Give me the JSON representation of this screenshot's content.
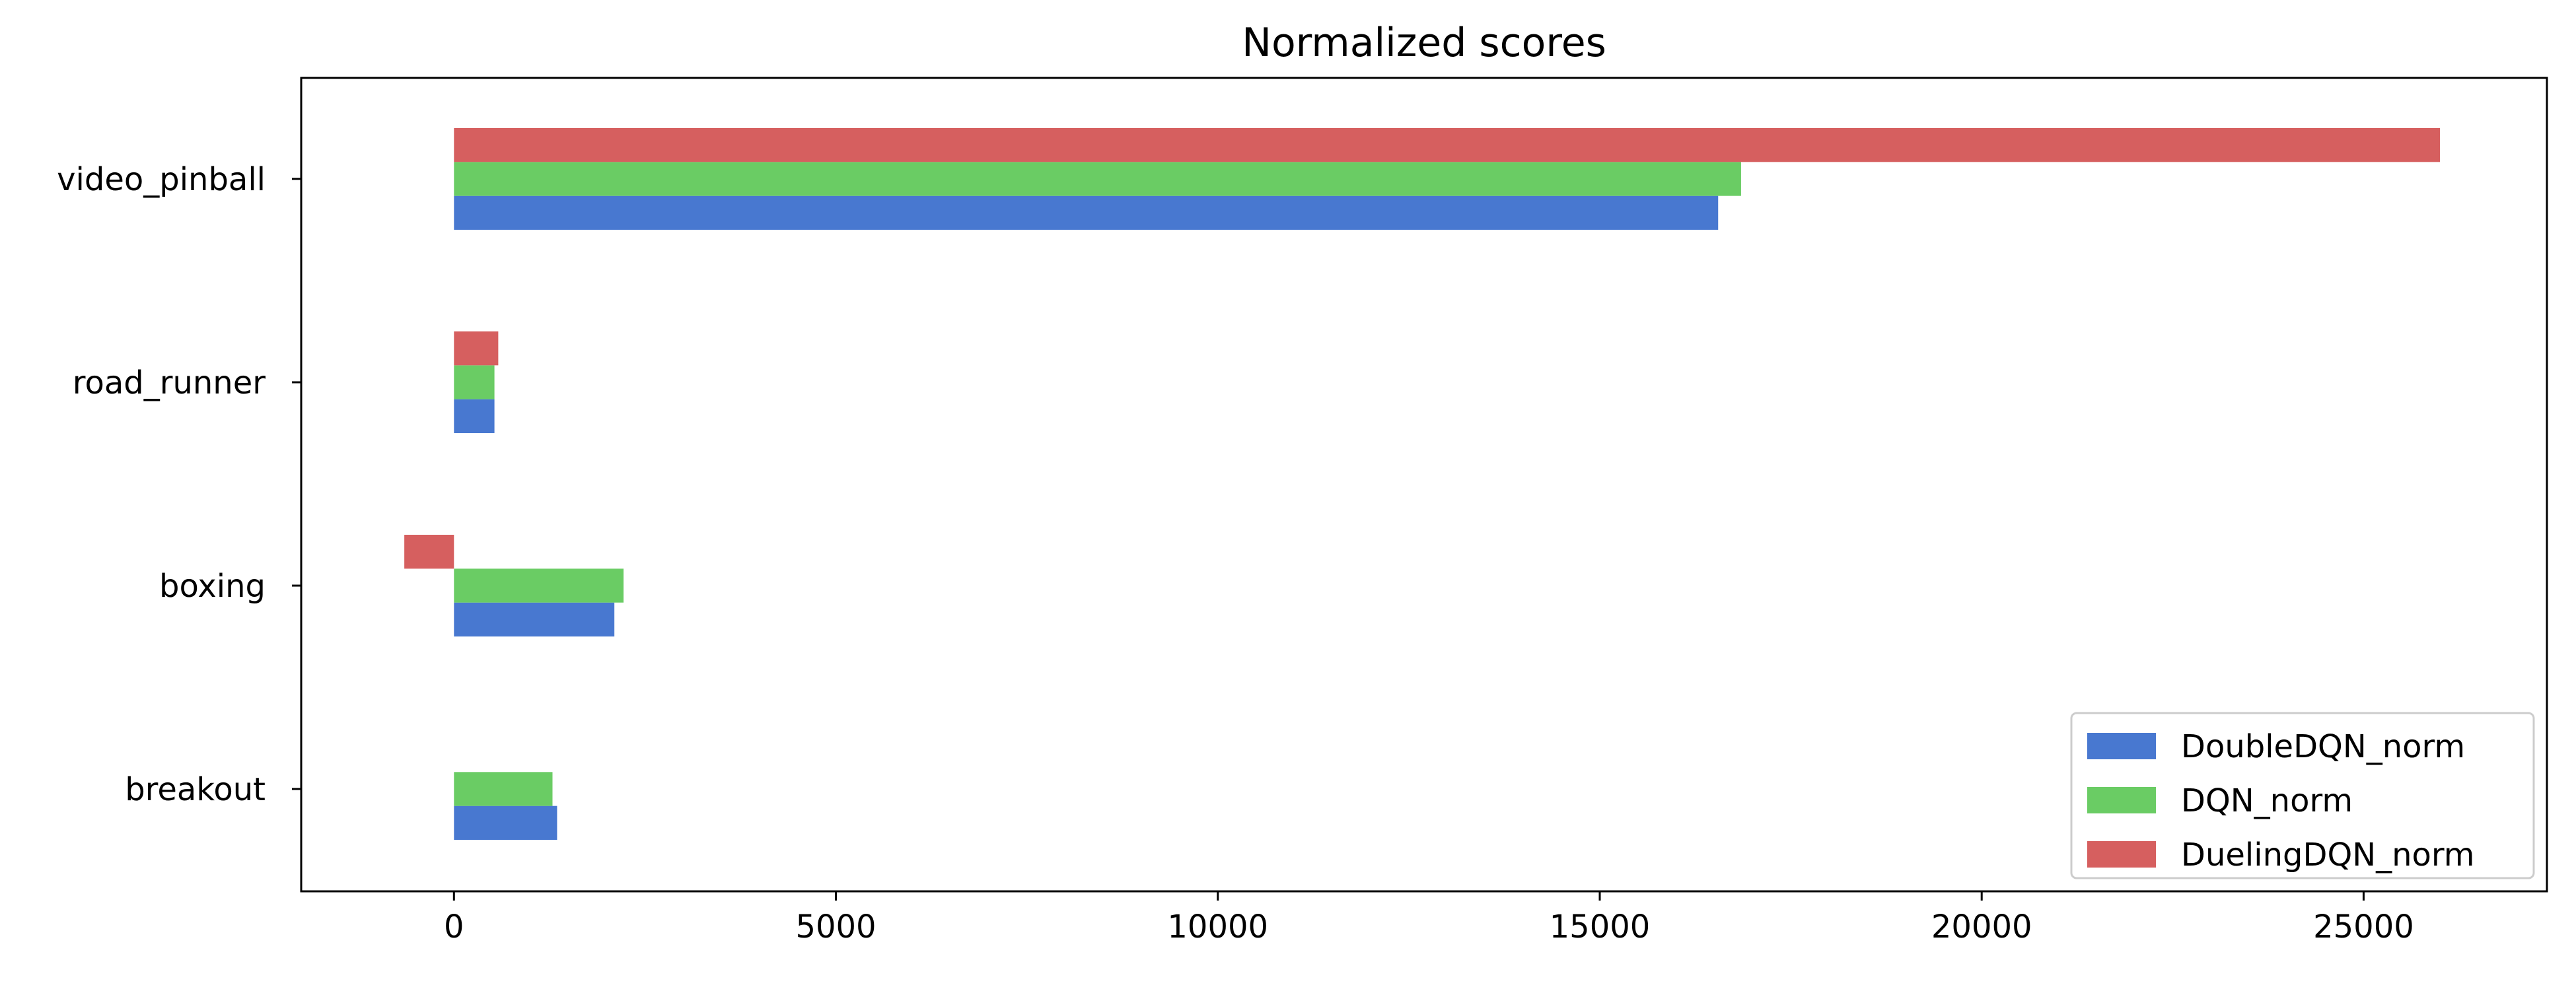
{
  "chart_data": {
    "type": "bar",
    "orientation": "horizontal",
    "title": "Normalized scores",
    "xlabel": "",
    "ylabel": "",
    "categories": [
      "video_pinball",
      "road_runner",
      "boxing",
      "breakout"
    ],
    "series": [
      {
        "name": "DoubleDQN_norm",
        "color": "#4878d0",
        "values": [
          16550,
          530,
          2100,
          1350
        ]
      },
      {
        "name": "DQN_norm",
        "color": "#6acc64",
        "values": [
          16850,
          530,
          2220,
          1290
        ]
      },
      {
        "name": "DuelingDQN_norm",
        "color": "#d65f5f",
        "values": [
          26000,
          580,
          -650,
          0
        ]
      }
    ],
    "xlim": [
      -2000,
      27400
    ],
    "xticks": [
      0,
      5000,
      10000,
      15000,
      20000,
      25000
    ],
    "grid": false,
    "legend_position": "lower right"
  }
}
